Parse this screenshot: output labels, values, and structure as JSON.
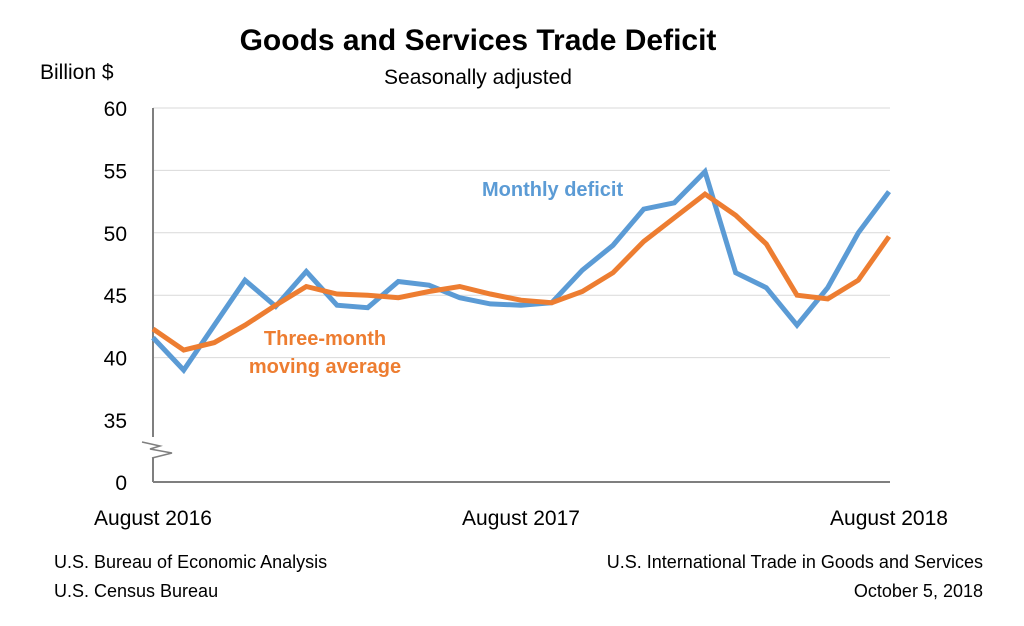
{
  "chart_data": {
    "type": "line",
    "title": "Goods and Services Trade Deficit",
    "subtitle": "Seasonally adjusted",
    "ylabel": "Billion $",
    "xlabel": "",
    "ylim": [
      35,
      60
    ],
    "y_axis_break": true,
    "y_ticks": [
      "60",
      "55",
      "50",
      "45",
      "40",
      "35",
      "0"
    ],
    "y_tick_values": [
      60,
      55,
      50,
      45,
      40,
      35
    ],
    "x_tick_labels": [
      {
        "label": "August 2016",
        "index": 0
      },
      {
        "label": "August 2017",
        "index": 12
      },
      {
        "label": "August 2018",
        "index": 24
      }
    ],
    "grid": true,
    "series": [
      {
        "name": "Monthly deficit",
        "label": "Monthly deficit",
        "color": "#5B9BD5",
        "values": [
          41.6,
          39.0,
          42.6,
          46.2,
          44.1,
          46.9,
          44.2,
          44.0,
          46.1,
          45.8,
          44.8,
          44.3,
          44.2,
          44.4,
          47.0,
          49.0,
          51.9,
          52.4,
          54.9,
          46.8,
          45.6,
          42.6,
          45.6,
          50.0,
          53.3
        ]
      },
      {
        "name": "Three-month moving average",
        "label_line1": "Three-month",
        "label_line2": "moving average",
        "color": "#ED7D31",
        "values": [
          42.3,
          40.6,
          41.2,
          42.6,
          44.2,
          45.7,
          45.1,
          45.0,
          44.8,
          45.3,
          45.7,
          45.1,
          44.6,
          44.4,
          45.3,
          46.8,
          49.3,
          51.2,
          53.1,
          51.4,
          49.1,
          45.0,
          44.7,
          46.2,
          49.7
        ]
      }
    ]
  },
  "footer": {
    "source_line1": "U.S. Bureau of Economic Analysis",
    "source_line2": "U.S. Census Bureau",
    "release_line1": "U.S. International Trade in Goods and Services",
    "release_line2": "October 5, 2018"
  }
}
